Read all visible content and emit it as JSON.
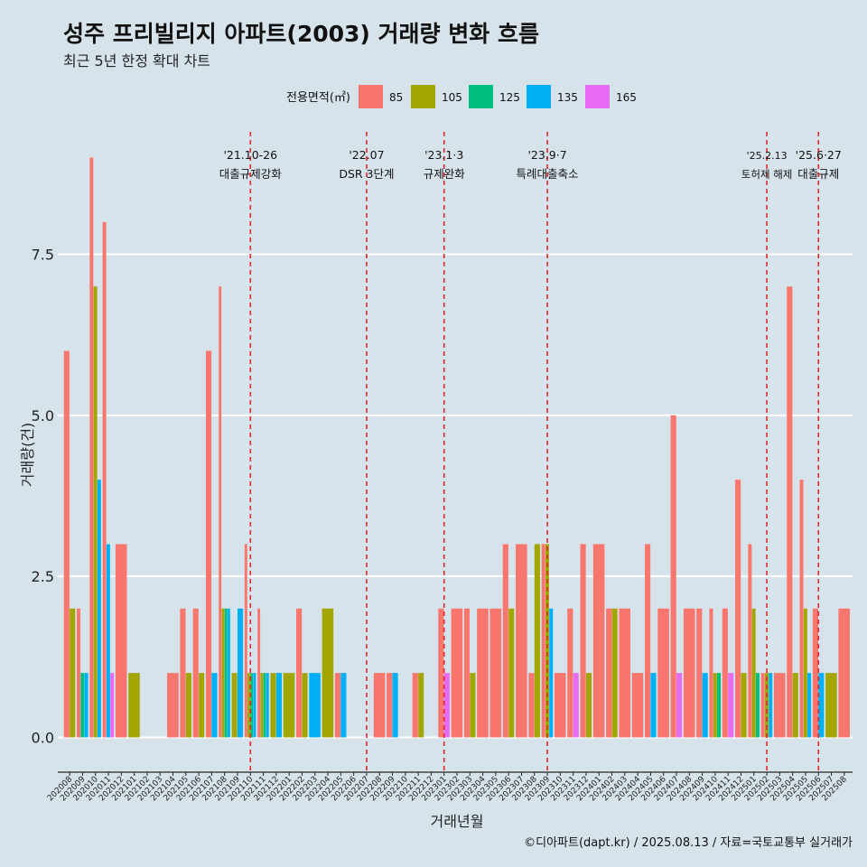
{
  "header": {
    "title": "성주 프리빌리지 아파트(2003) 거래량 변화 흐름",
    "subtitle": "최근 5년 한정 확대 차트"
  },
  "caption": "©디아파트(dapt.kr) / 2025.08.13 / 자료=국토교통부 실거래가",
  "colors": {
    "background": "#d6e3ea",
    "grid": "#ffffff",
    "vline": "#e3262b"
  },
  "chart_data": {
    "type": "bar",
    "title": "성주 프리빌리지 아파트(2003) 거래량 변화 흐름",
    "xlabel": "거래년월",
    "ylabel": "거래량(건)",
    "ylim": [
      -0.4,
      9.4
    ],
    "yticks": [
      0,
      2.5,
      5,
      7.5
    ],
    "ytick_labels": [
      "0.0",
      "2.5",
      "5.0",
      "7.5"
    ],
    "grid": true,
    "legend": {
      "title": "전용면적(㎡)",
      "position": "top",
      "items": [
        {
          "label": "85",
          "color": "#f8766d"
        },
        {
          "label": "105",
          "color": "#a3a500"
        },
        {
          "label": "125",
          "color": "#00bf7d"
        },
        {
          "label": "135",
          "color": "#00b0f6"
        },
        {
          "label": "165",
          "color": "#e76bf3"
        }
      ]
    },
    "categories": [
      "202008",
      "202009",
      "202010",
      "202011",
      "202012",
      "202101",
      "202102",
      "202103",
      "202104",
      "202105",
      "202106",
      "202107",
      "202108",
      "202109",
      "202110",
      "202111",
      "202112",
      "202201",
      "202202",
      "202203",
      "202204",
      "202205",
      "202206",
      "202207",
      "202208",
      "202209",
      "202210",
      "202211",
      "202212",
      "202301",
      "202302",
      "202303",
      "202304",
      "202305",
      "202306",
      "202307",
      "202308",
      "202309",
      "202310",
      "202311",
      "202312",
      "202401",
      "202402",
      "202403",
      "202404",
      "202405",
      "202406",
      "202407",
      "202408",
      "202409",
      "202410",
      "202411",
      "202412",
      "202501",
      "202502",
      "202503",
      "202504",
      "202505",
      "202506",
      "202507",
      "202508"
    ],
    "series": [
      {
        "name": "85",
        "values": [
          6,
          2,
          9,
          8,
          3,
          0,
          0,
          0,
          1,
          2,
          2,
          6,
          7,
          0,
          3,
          2,
          0,
          0,
          2,
          0,
          0,
          1,
          0,
          0,
          1,
          1,
          0,
          1,
          0,
          2,
          2,
          2,
          2,
          2,
          3,
          3,
          1,
          3,
          1,
          2,
          3,
          3,
          2,
          2,
          1,
          3,
          2,
          5,
          2,
          2,
          2,
          2,
          4,
          3,
          1,
          1,
          7,
          4,
          2,
          0,
          2
        ]
      },
      {
        "name": "105",
        "values": [
          2,
          0,
          7,
          0,
          0,
          1,
          0,
          0,
          0,
          1,
          1,
          0,
          2,
          1,
          1,
          1,
          1,
          1,
          1,
          0,
          2,
          0,
          0,
          0,
          0,
          0,
          0,
          1,
          0,
          0,
          0,
          1,
          0,
          0,
          2,
          0,
          3,
          3,
          0,
          0,
          1,
          0,
          2,
          0,
          0,
          0,
          0,
          0,
          0,
          0,
          1,
          0,
          1,
          2,
          1,
          0,
          1,
          2,
          0,
          1,
          0
        ]
      },
      {
        "name": "125",
        "values": [
          0,
          1,
          0,
          0,
          0,
          0,
          0,
          0,
          0,
          0,
          0,
          0,
          2,
          0,
          1,
          1,
          0,
          0,
          0,
          0,
          0,
          0,
          0,
          0,
          0,
          0,
          0,
          0,
          0,
          0,
          0,
          0,
          0,
          0,
          0,
          0,
          0,
          0,
          0,
          0,
          0,
          0,
          0,
          0,
          0,
          0,
          0,
          0,
          0,
          0,
          1,
          0,
          0,
          1,
          0,
          0,
          0,
          0,
          0,
          0,
          0
        ]
      },
      {
        "name": "135",
        "values": [
          0,
          1,
          4,
          3,
          0,
          0,
          0,
          0,
          0,
          0,
          0,
          1,
          2,
          2,
          1,
          1,
          1,
          0,
          0,
          1,
          0,
          1,
          0,
          0,
          0,
          1,
          0,
          0,
          0,
          0,
          0,
          0,
          0,
          0,
          0,
          0,
          0,
          2,
          0,
          0,
          0,
          0,
          0,
          0,
          0,
          1,
          0,
          0,
          0,
          1,
          0,
          0,
          0,
          0,
          1,
          0,
          0,
          1,
          1,
          0,
          0
        ]
      },
      {
        "name": "165",
        "values": [
          0,
          0,
          0,
          1,
          0,
          0,
          0,
          0,
          0,
          0,
          0,
          0,
          0,
          0,
          0,
          0,
          0,
          0,
          0,
          0,
          0,
          0,
          0,
          0,
          0,
          0,
          0,
          0,
          0,
          1,
          0,
          0,
          0,
          0,
          0,
          0,
          0,
          0,
          0,
          1,
          0,
          0,
          0,
          0,
          0,
          0,
          0,
          1,
          0,
          0,
          0,
          1,
          0,
          0,
          0,
          0,
          0,
          0,
          0,
          0,
          0
        ]
      }
    ],
    "annotations": [
      {
        "at": "202110",
        "label1": "'21.10-26",
        "label2": "대출규제강화"
      },
      {
        "at": "202207",
        "label1": "'22.07",
        "label2": "DSR 3단계"
      },
      {
        "at": "202301",
        "label1": "'23.1·3",
        "label2": "규제완화"
      },
      {
        "at": "202309",
        "label1": "'23.9·7",
        "label2": "특례대출축소"
      },
      {
        "at": "202502",
        "label1": "'25.2.13",
        "label2": "토허제 해제"
      },
      {
        "at": "202506",
        "label1": "'25.6·27",
        "label2": "대출규제"
      }
    ]
  }
}
